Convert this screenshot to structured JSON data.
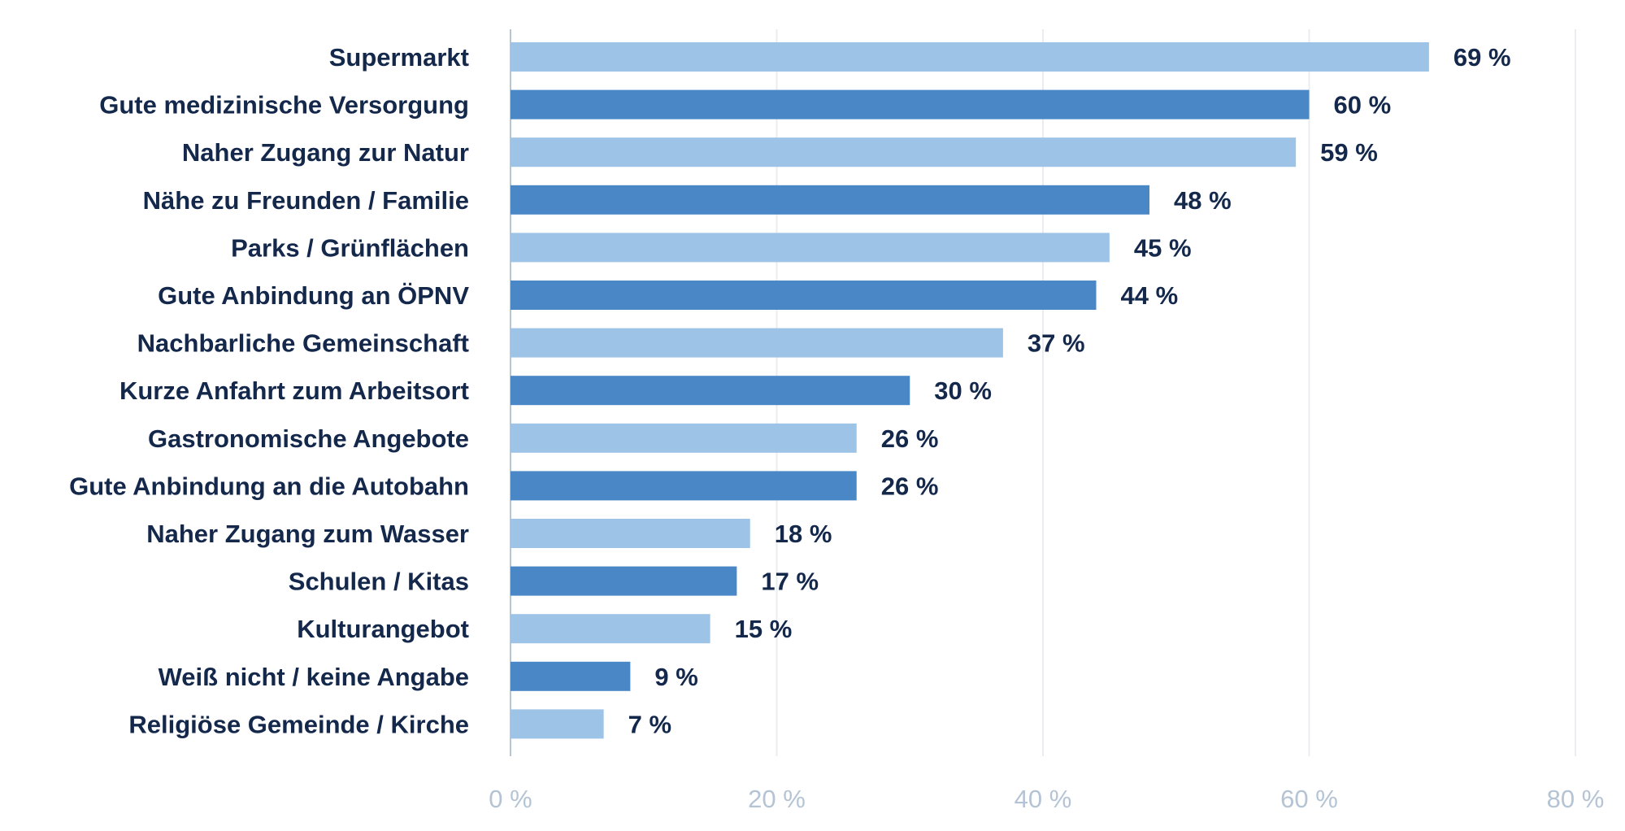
{
  "chart_data": {
    "type": "bar",
    "orientation": "horizontal",
    "categories": [
      "Supermarkt",
      "Gute medizinische Versorgung",
      "Naher Zugang zur Natur",
      "Nähe zu Freunden / Familie",
      "Parks / Grünflächen",
      "Gute Anbindung an ÖPNV",
      "Nachbarliche Gemeinschaft",
      "Kurze Anfahrt zum Arbeitsort",
      "Gastronomische Angebote",
      "Gute Anbindung an die Autobahn",
      "Naher Zugang zum Wasser",
      "Schulen / Kitas",
      "Kulturangebot",
      "Weiß nicht / keine Angabe",
      "Religiöse Gemeinde / Kirche"
    ],
    "values": [
      69,
      60,
      59,
      48,
      45,
      44,
      37,
      30,
      26,
      26,
      18,
      17,
      15,
      9,
      7
    ],
    "value_labels": [
      "69 %",
      "60 %",
      "59 %",
      "48 %",
      "45 %",
      "44 %",
      "37 %",
      "30 %",
      "26 %",
      "26 %",
      "18 %",
      "17 %",
      "15 %",
      "9 %",
      "7 %"
    ],
    "xlim": [
      0,
      80
    ],
    "x_ticks": [
      0,
      20,
      40,
      60,
      80
    ],
    "x_tick_labels": [
      "0 %",
      "20 %",
      "40 %",
      "60 %",
      "80 %"
    ],
    "grid": true,
    "colors": {
      "light": "#9dc3e6",
      "dark": "#4a87c6",
      "text": "#14284b",
      "tick": "#b4c4d4",
      "grid": "#e9edf1"
    },
    "color_pattern": "alternating light/dark"
  }
}
